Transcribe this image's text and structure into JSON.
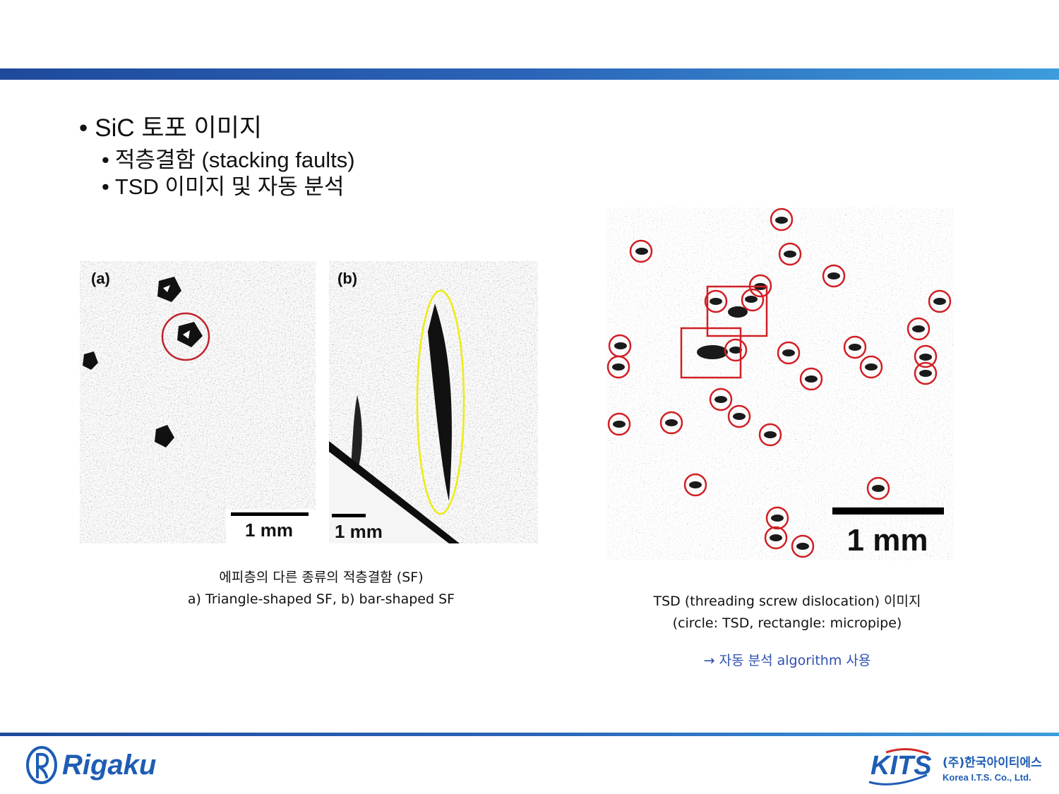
{
  "slide": {
    "bullet_main": "SiC 토포 이미지",
    "bullet_sub1": "적층결함 (stacking faults)",
    "bullet_sub2": "TSD 이미지 및 자동 분석",
    "bullet_char": "•"
  },
  "figures": {
    "panel_a_label": "(a)",
    "panel_b_label": "(b)",
    "panel_a_scale": "1 mm",
    "panel_b_scale": "1 mm",
    "tsd_scale": "1 mm"
  },
  "captions": {
    "sf_line1": "에피층의 다른 종류의 적층결함 (SF)",
    "sf_line2": "a) Triangle-shaped SF, b) bar-shaped SF",
    "tsd_line1": "TSD (threading screw dislocation) 이미지",
    "tsd_line2": "(circle: TSD, rectangle: micropipe)",
    "tsd_line3": "→ 자동 분석 algorithm 사용"
  },
  "footer": {
    "left_logo_text": "Rigaku",
    "right_logo_text": "KITS",
    "right_logo_kor": "(주)한국아이티에스",
    "right_logo_eng": "Korea I.T.S. Co., Ltd."
  },
  "colors": {
    "accent_blue": "#2b5fb3",
    "caption_blue": "#2f4fb0",
    "circle_red": "#d11f25",
    "ellipse_yellow": "#ecec10"
  }
}
